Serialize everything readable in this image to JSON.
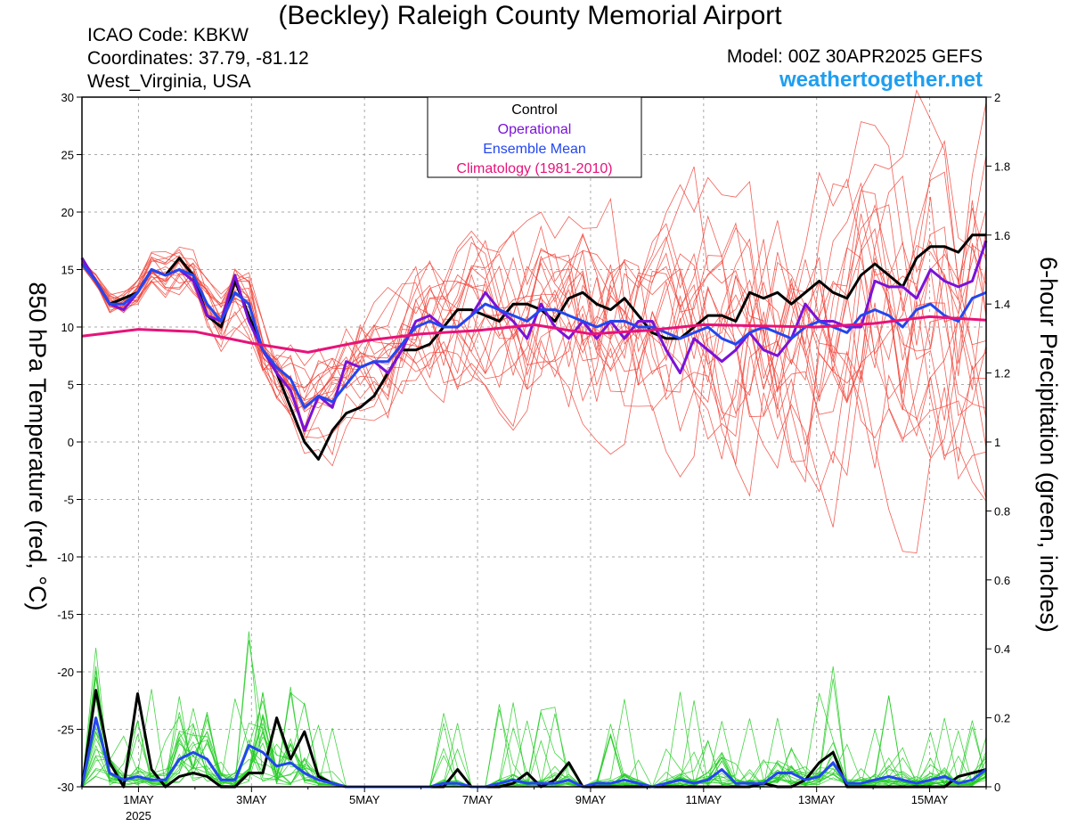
{
  "header": {
    "title": "(Beckley) Raleigh County Memorial Airport",
    "icao": "ICAO Code: KBKW",
    "coords": "Coordinates: 37.79, -81.12",
    "region": "West_Virginia, USA",
    "model": "Model: 00Z 30APR2025 GEFS",
    "site": "weathertogether.net"
  },
  "colors": {
    "control": "#000000",
    "operational": "#7a12d8",
    "ensemble_mean": "#2346f0",
    "climatology": "#e6137a",
    "member_temp": "#f0443a",
    "member_precip": "#22cc22",
    "site_link": "#1e9ef0"
  },
  "chart_data": {
    "type": "line",
    "legend": {
      "position": "top-center",
      "entries": [
        {
          "label": "Control",
          "color": "#000000"
        },
        {
          "label": "Operational",
          "color": "#7a12d8"
        },
        {
          "label": "Ensemble Mean",
          "color": "#2346f0"
        },
        {
          "label": "Climatology (1981-2010)",
          "color": "#e6137a"
        }
      ]
    },
    "y_left": {
      "label": "850 hPa Temperature (red, °C)",
      "range": [
        -30,
        30
      ],
      "ticks": [
        30,
        25,
        20,
        15,
        10,
        5,
        0,
        -5,
        -10,
        -15,
        -20,
        -25,
        -30
      ]
    },
    "y_right": {
      "label": "6-hour Precipitation (green, inches)",
      "range": [
        0,
        2
      ],
      "ticks": [
        "2",
        "1.8",
        "1.6",
        "1.4",
        "1.2",
        "1",
        "0.8",
        "0.6",
        "0.4",
        "0.2",
        "0"
      ]
    },
    "x": {
      "unit": "days from 00Z 30 Apr 2025",
      "range": [
        0,
        16
      ],
      "ticks": [
        {
          "t": 1,
          "label": "1MAY",
          "sub": "2025"
        },
        {
          "t": 3,
          "label": "3MAY"
        },
        {
          "t": 5,
          "label": "5MAY"
        },
        {
          "t": 7,
          "label": "7MAY"
        },
        {
          "t": 9,
          "label": "9MAY"
        },
        {
          "t": 11,
          "label": "11MAY"
        },
        {
          "t": 13,
          "label": "13MAY"
        },
        {
          "t": 15,
          "label": "15MAY"
        }
      ]
    },
    "grid": true,
    "temperature_series": [
      {
        "name": "Control",
        "values": [
          16,
          14,
          12,
          12.5,
          13,
          15,
          14.5,
          16,
          14.5,
          11,
          10,
          14,
          11,
          8,
          6,
          3,
          0,
          -1.5,
          1,
          2.5,
          3,
          4,
          6,
          8,
          8,
          8.5,
          10,
          11.5,
          11.5,
          11,
          10.5,
          12,
          12,
          11.5,
          10.5,
          12.5,
          13,
          12,
          11.5,
          12.5,
          11,
          9.5,
          9,
          9,
          10,
          11,
          11,
          10.5,
          13,
          12.5,
          13,
          12,
          13,
          14,
          13,
          12.5,
          14.5,
          15.5,
          14.5,
          13.5,
          16,
          17,
          17,
          16.5,
          18,
          18
        ]
      },
      {
        "name": "Operational",
        "values": [
          16,
          14,
          12,
          11.5,
          13,
          15,
          14.5,
          15,
          14,
          11,
          10.5,
          14.5,
          10.5,
          8,
          6,
          4.5,
          1,
          4,
          3,
          7,
          6.5,
          7,
          6,
          8,
          10.5,
          11,
          10,
          10,
          11,
          13,
          11.5,
          10.5,
          9,
          12,
          10,
          9,
          10.5,
          9,
          10.5,
          9,
          10.5,
          10.5,
          8,
          6,
          9,
          8,
          7,
          8,
          9.5,
          8,
          7.5,
          9,
          12,
          10.5,
          10.5,
          10,
          10,
          14,
          13.5,
          13.5,
          12.5,
          15,
          14,
          13.5,
          14,
          17.5
        ]
      },
      {
        "name": "Ensemble Mean",
        "values": [
          15.5,
          14,
          12,
          12,
          13,
          15,
          14.5,
          15,
          14.5,
          12,
          10.5,
          13,
          12,
          8,
          6.5,
          5.5,
          3,
          4,
          3.5,
          5,
          6.5,
          7,
          7,
          8.5,
          10,
          10.5,
          10,
          10,
          11,
          12,
          11.5,
          11,
          10.5,
          11.5,
          11.5,
          11,
          10.5,
          10,
          10.5,
          10.5,
          10,
          10,
          9.5,
          9,
          9.5,
          10,
          9,
          8.5,
          9.5,
          10,
          9.5,
          9,
          10,
          10.5,
          10,
          9.5,
          11,
          11.5,
          11,
          10,
          11.5,
          12,
          11,
          10.5,
          12.5,
          13
        ]
      },
      {
        "name": "Climatology (1981-2010)",
        "points": [
          [
            0,
            9.2
          ],
          [
            1,
            9.8
          ],
          [
            2,
            9.6
          ],
          [
            3,
            8.6
          ],
          [
            4,
            7.8
          ],
          [
            5,
            8.8
          ],
          [
            6,
            9.4
          ],
          [
            7,
            9.7
          ],
          [
            8,
            10.2
          ],
          [
            9,
            9.4
          ],
          [
            10,
            9.7
          ],
          [
            11,
            10.2
          ],
          [
            12,
            10.1
          ],
          [
            13,
            10.0
          ],
          [
            14,
            10.3
          ],
          [
            15,
            10.9
          ],
          [
            16,
            10.6
          ]
        ]
      }
    ],
    "precipitation_series": [
      {
        "name": "Control",
        "values": [
          0,
          0.28,
          0.07,
          0,
          0.27,
          0.05,
          0,
          0.03,
          0.04,
          0.03,
          0,
          0,
          0.04,
          0.04,
          0.2,
          0.08,
          0.16,
          0.03,
          0.01,
          0,
          0,
          0,
          0,
          0,
          0,
          0,
          0,
          0.05,
          0,
          0,
          0,
          0.01,
          0.04,
          0,
          0.02,
          0.07,
          0,
          0,
          0,
          0,
          0,
          0,
          0,
          0,
          0,
          0,
          0,
          0,
          0,
          0.01,
          0,
          0,
          0.02,
          0.07,
          0.1,
          0,
          0,
          0,
          0,
          0,
          0,
          0,
          0,
          0.03,
          0.04,
          0.05
        ]
      },
      {
        "name": "Ensemble Mean",
        "values": [
          0,
          0.2,
          0.04,
          0.02,
          0.03,
          0.02,
          0.02,
          0.08,
          0.1,
          0.08,
          0.02,
          0.02,
          0.12,
          0.1,
          0.06,
          0.07,
          0.04,
          0.02,
          0.01,
          0,
          0,
          0,
          0,
          0,
          0,
          0,
          0.01,
          0.01,
          0,
          0,
          0.01,
          0.02,
          0.01,
          0.01,
          0.01,
          0.02,
          0,
          0.01,
          0.01,
          0.02,
          0.01,
          0,
          0.01,
          0.02,
          0.01,
          0.02,
          0.05,
          0.01,
          0.01,
          0.01,
          0.04,
          0.04,
          0.02,
          0.03,
          0.07,
          0.01,
          0.01,
          0.02,
          0.03,
          0.02,
          0.01,
          0.02,
          0.03,
          0.01,
          0.02,
          0.05
        ]
      }
    ]
  }
}
